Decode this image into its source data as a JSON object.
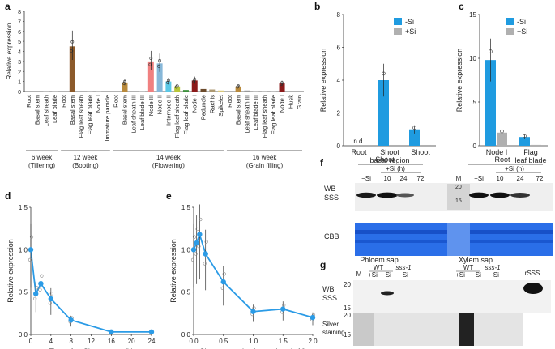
{
  "panels": {
    "a": "a",
    "b": "b",
    "c": "c",
    "d": "d",
    "e": "e",
    "f": "f",
    "g": "g"
  },
  "colors": {
    "minus_si": "#1f9be0",
    "plus_si": "#b0b0b0",
    "line": "#2b9be6",
    "blot_blue": "#1e66e6"
  },
  "chart_data": [
    {
      "panel": "a",
      "type": "bar",
      "ylabel": "Relative expression",
      "ylim": [
        0,
        8
      ],
      "yticks": [
        0,
        1,
        2,
        3,
        4,
        5,
        6,
        7,
        8
      ],
      "categories": [
        "Root",
        "Basal stem",
        "Leaf sheath",
        "Leaf blade",
        "Root",
        "Basal stem",
        "Flag leaf sheath",
        "Flag leaf blade",
        "Node I",
        "Immature panicle",
        "Root",
        "Basal stem",
        "Leaf sheath III",
        "Leaf blade III",
        "Node III",
        "Node II",
        "Internode II",
        "Flag leaf sheath",
        "Flag leaf blade",
        "Node I",
        "Peduncle",
        "Rachis",
        "Spikelet",
        "Root",
        "Basal stem",
        "Leaf sheath III",
        "Leaf blade III",
        "Flag leaf sheath",
        "Flag leaf blade",
        "Node I",
        "Husk",
        "Grain"
      ],
      "values": [
        0,
        0,
        0.05,
        0.05,
        0,
        4.5,
        0.02,
        0.05,
        0.05,
        0,
        0,
        0.9,
        0,
        0.05,
        3.0,
        2.8,
        1.0,
        0.5,
        0.15,
        1.1,
        0.25,
        0.2,
        0.1,
        0,
        0.5,
        0.1,
        0.05,
        0.05,
        0.05,
        0.8,
        0,
        0
      ],
      "bar_colors": [
        "#999",
        "#999",
        "#999",
        "#999",
        "#999",
        "#8c5a2b",
        "#999",
        "#999",
        "#999",
        "#999",
        "#999",
        "#b98a3c",
        "#999",
        "#999",
        "#f08080",
        "#87b7d8",
        "#5bc8e6",
        "#b9c73a",
        "#3c8f3c",
        "#8b1a1a",
        "#6b4a2b",
        "#ae9a73",
        "#d9c77a",
        "#999",
        "#b98a3c",
        "#999",
        "#999",
        "#999",
        "#999",
        "#8b1a1a",
        "#999",
        "#999"
      ],
      "groups": [
        {
          "label": "6 week",
          "sub": "(Tillering)"
        },
        {
          "label": "12 week",
          "sub": "(Booting)"
        },
        {
          "label": "14 week",
          "sub": "(Flowering)"
        },
        {
          "label": "16 week",
          "sub": "(Grain filling)"
        }
      ]
    },
    {
      "panel": "b",
      "type": "bar",
      "ylabel": "Relative expression",
      "ylim": [
        0,
        8
      ],
      "yticks": [
        0,
        2,
        4,
        6,
        8
      ],
      "categories": [
        "Root",
        "Shoot basal region",
        "Shoot"
      ],
      "series": [
        {
          "name": "-Si",
          "values": [
            0,
            4.0,
            1.0
          ]
        },
        {
          "name": "+Si",
          "values": [
            0,
            0.05,
            0.05
          ]
        }
      ],
      "annotation": "n.d."
    },
    {
      "panel": "c",
      "type": "bar",
      "ylabel": "Relative expression",
      "ylim": [
        0,
        15
      ],
      "yticks": [
        0,
        5,
        10,
        15
      ],
      "categories": [
        "Node I",
        "Flag leaf blade"
      ],
      "series": [
        {
          "name": "-Si",
          "values": [
            9.8,
            1.0
          ]
        },
        {
          "name": "+Si",
          "values": [
            1.5,
            0.1
          ]
        }
      ]
    },
    {
      "panel": "d",
      "type": "line",
      "xlabel": "Time after Si treatment (h)",
      "ylabel": "Relative expression",
      "xlim": [
        0,
        24
      ],
      "ylim": [
        0,
        1.5
      ],
      "xticks": [
        0,
        4,
        8,
        12,
        16,
        20,
        24
      ],
      "yticks": [
        "0.0",
        "0.5",
        "1.0",
        "1.5"
      ],
      "x": [
        0,
        1,
        2,
        4,
        8,
        16,
        24
      ],
      "y": [
        1.0,
        0.48,
        0.6,
        0.42,
        0.17,
        0.03,
        0.03
      ]
    },
    {
      "panel": "e",
      "type": "line",
      "xlabel": "Si concentration in medium (mM)",
      "ylabel": "Relative expression",
      "xlim": [
        0,
        2.0
      ],
      "ylim": [
        0,
        1.5
      ],
      "xticks": [
        "0.0",
        "0.5",
        "1.0",
        "1.5",
        "2.0"
      ],
      "yticks": [
        "0.0",
        "0.5",
        "1.0",
        "1.5"
      ],
      "x": [
        0,
        0.05,
        0.1,
        0.2,
        0.5,
        1.0,
        1.5,
        2.0
      ],
      "y": [
        1.0,
        1.08,
        1.18,
        0.95,
        0.62,
        0.27,
        0.3,
        0.2
      ]
    }
  ],
  "blot_f": {
    "shoot": "Shoot",
    "root": "Root",
    "si_time": "+Si (h)",
    "minus_si": "−Si",
    "t10": "10",
    "t24": "24",
    "t72": "72",
    "marker": "M",
    "mw20": "20",
    "mw15": "15",
    "wb": "WB",
    "sss": "SSS",
    "cbb": "CBB"
  },
  "blot_g": {
    "m": "M",
    "phloem": "Phloem sap",
    "xylem": "Xylem sap",
    "wt": "WT",
    "mutant": "sss-1",
    "plus_si": "+Si",
    "minus_si": "−Si",
    "rsss": "rSSS",
    "wb": "WB",
    "sss": "SSS",
    "mw20": "20",
    "mw15": "15",
    "silver1": "Silver",
    "silver2": "staining"
  }
}
